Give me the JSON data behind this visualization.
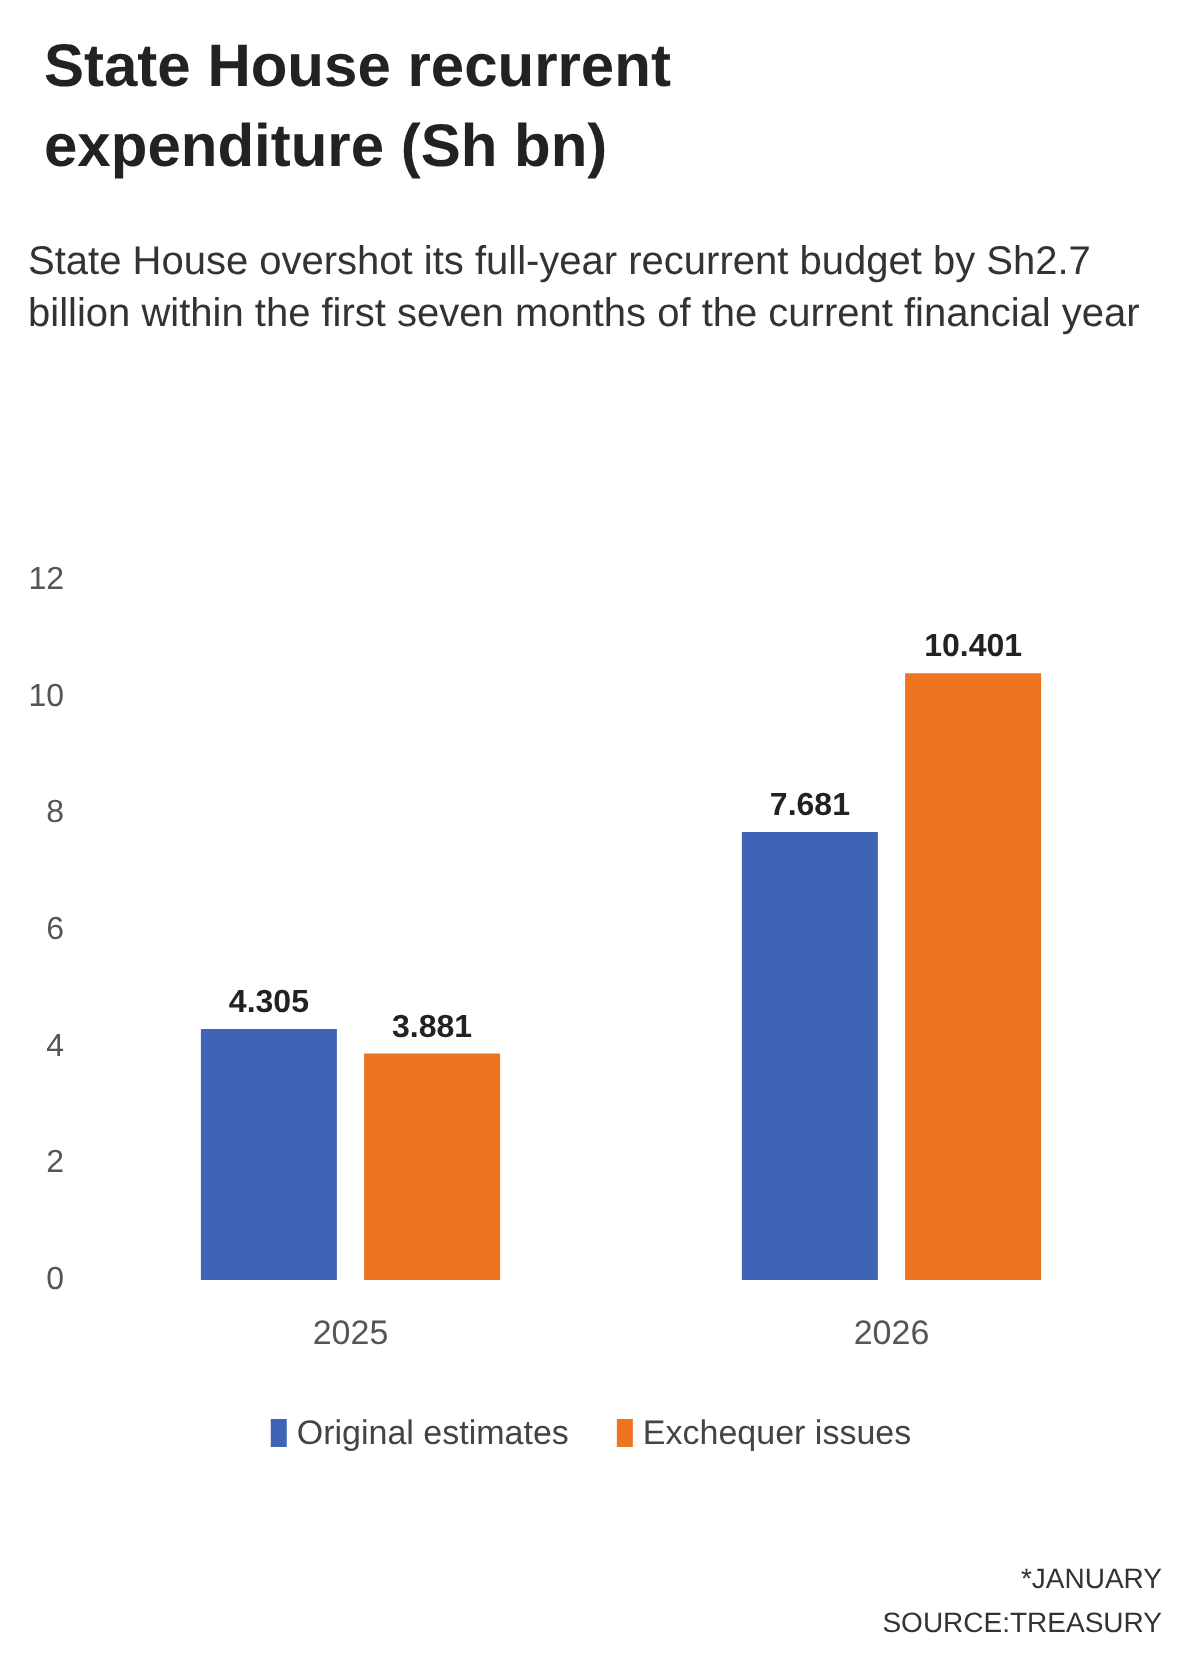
{
  "chart_data": {
    "type": "bar",
    "title": "State House recurrent expenditure (Sh bn)",
    "subtitle": "State House overshot its full-year recurrent budget by Sh2.7 billion within the first seven months of the current financial year",
    "categories": [
      "2025",
      "2026"
    ],
    "series": [
      {
        "name": "Original estimates",
        "color": "#3f63b5",
        "values": [
          4.305,
          7.681
        ]
      },
      {
        "name": "Exchequer issues",
        "color": "#ee7422",
        "values": [
          3.881,
          10.401
        ]
      }
    ],
    "ylim": [
      0,
      12
    ],
    "yticks": [
      0,
      2,
      4,
      6,
      8,
      10,
      12
    ],
    "grid": false,
    "legend": "bottom",
    "data_labels": true,
    "annotations": [
      "*JANUARY",
      "SOURCE:TREASURY"
    ]
  }
}
